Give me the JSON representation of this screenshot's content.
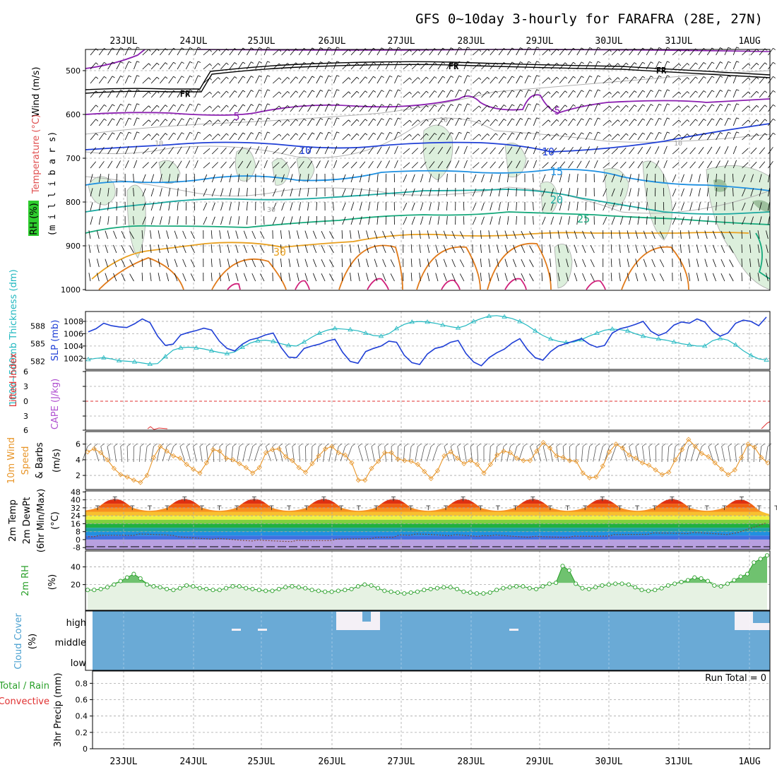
{
  "title": "GFS 0~10day 3-hourly for FARAFRA (28E, 27N)",
  "dates": [
    "23JUL",
    "24JUL",
    "25JUL",
    "26JUL",
    "27JUL",
    "28JUL",
    "29JUL",
    "30JUL",
    "31JUL",
    "1AUG"
  ],
  "colors": {
    "grid": "#a0a0a0",
    "slp": "#1f3fd6",
    "thickness": "#22b8c0",
    "wind10": "#e8962a",
    "rh2m": "#2aa02a",
    "cloud": "#6aaad6",
    "lifted": "#e03030",
    "frz": "#000000"
  },
  "panels": {
    "profile": {
      "ylabel_wind": "Wind (m/s)",
      "ylabel_temp": "Temperature (°C)",
      "ylabel_rh": "RH (%)",
      "ylabel_axis": "(m i l l i b a r s)",
      "levels": [
        "500",
        "600",
        "700",
        "800",
        "900",
        "1000"
      ],
      "contour_labels": {
        "fr1": "FR",
        "fr2": "FR",
        "fr3": "FR",
        "t5a": "5",
        "t5b": "5",
        "t10a": "10",
        "t10b": "10",
        "t15": "15",
        "t20": "20",
        "t25": "25",
        "t30": "30",
        "rh10a": "10",
        "rh10b": "10",
        "rh10c": "10",
        "rh30": "30"
      }
    },
    "slp": {
      "ylabel_thk": "1000~500mb Thickness (dm)",
      "ylabel_slp": "SLP (mb)",
      "thk_ticks": [
        "588",
        "585",
        "582"
      ],
      "slp_ticks": [
        "1008",
        "1006",
        "1004",
        "1002"
      ]
    },
    "cape": {
      "ylabel_li": "Lifted Index",
      "ylabel_cape": "CAPE (J/kg)",
      "ticks": [
        "6",
        "3",
        "0",
        "3",
        "6"
      ]
    },
    "wind10": {
      "ylabel_1": "10m Wind",
      "ylabel_2": "Speed",
      "ylabel_3": "& Barbs",
      "ylabel_unit": "(m/s)",
      "ticks": [
        "6",
        "4",
        "2"
      ]
    },
    "temp2m": {
      "ylabel_1": "2m Temp",
      "ylabel_2": "2m DewPt",
      "ylabel_3": "(6hr Min/Max)",
      "ylabel_unit": "(°C)",
      "ticks": [
        "48",
        "40",
        "32",
        "24",
        "16",
        "8",
        "0",
        "-8"
      ]
    },
    "rh2m": {
      "ylabel": "2m RH",
      "ylabel_unit": "(%)",
      "ticks": [
        "40",
        "20"
      ]
    },
    "cloud": {
      "ylabel": "Cloud Cover",
      "ylabel_unit": "(%)",
      "layers": [
        "high",
        "middle",
        "low"
      ]
    },
    "precip": {
      "ylabel_1": "Total / Rain",
      "ylabel_2": "Convective",
      "ylabel_3": "3hr Precip (mm)",
      "run_total": "Run Total = 0",
      "ticks": [
        "0.8",
        "0.6",
        "0.4",
        "0.2",
        "0"
      ]
    }
  },
  "chart_data": [
    {
      "type": "line",
      "panel": "slp",
      "series": [
        {
          "name": "SLP (mb)",
          "values": [
            1006.3,
            1006.8,
            1007.7,
            1007.3,
            1007.1,
            1007.0,
            1007.6,
            1008.4,
            1007.8,
            1005.6,
            1004.1,
            1004.3,
            1005.8,
            1006.2,
            1006.5,
            1006.9,
            1006.6,
            1004.8,
            1003.6,
            1003.2,
            1004.3,
            1005.0,
            1005.3,
            1005.8,
            1006.1,
            1003.8,
            1002.2,
            1002.1,
            1003.6,
            1004.0,
            1004.3,
            1004.8,
            1005.1,
            1003.0,
            1001.5,
            1001.2,
            1003.1,
            1003.6,
            1004.0,
            1004.8,
            1004.6,
            1002.5,
            1001.3,
            1001.0,
            1002.7,
            1003.6,
            1003.9,
            1004.6,
            1004.9,
            1002.8,
            1001.4,
            1000.8,
            1002.1,
            1002.9,
            1003.5,
            1004.5,
            1005.2,
            1003.4,
            1002.1,
            1001.7,
            1003.1,
            1004.0,
            1004.4,
            1004.8,
            1005.2,
            1004.3,
            1003.8,
            1004.1,
            1006.1,
            1006.8,
            1007.1,
            1007.5,
            1008.0,
            1006.4,
            1005.7,
            1006.2,
            1007.4,
            1007.9,
            1007.7,
            1008.4,
            1007.9,
            1006.4,
            1005.6,
            1006.1,
            1007.7,
            1008.2,
            1008.0,
            1007.3,
            1008.7
          ]
        },
        {
          "name": "1000~500mb Thickness (dm)",
          "values": [
            582.3,
            582.5,
            582.6,
            582.4,
            582.1,
            582.0,
            581.9,
            581.7,
            581.5,
            581.6,
            582.8,
            583.9,
            584.3,
            584.4,
            584.3,
            584.1,
            583.8,
            583.5,
            583.3,
            583.6,
            584.4,
            585.1,
            585.5,
            585.6,
            585.4,
            585.0,
            584.7,
            584.6,
            585.3,
            586.1,
            586.8,
            587.3,
            587.6,
            587.5,
            587.4,
            587.2,
            586.8,
            586.4,
            586.3,
            586.7,
            587.6,
            588.3,
            588.7,
            588.8,
            588.7,
            588.5,
            588.2,
            587.9,
            587.7,
            588.1,
            588.8,
            589.3,
            589.7,
            589.8,
            589.6,
            589.3,
            588.8,
            588.1,
            587.2,
            586.4,
            585.8,
            585.4,
            585.2,
            585.3,
            585.7,
            586.3,
            586.8,
            587.3,
            587.5,
            587.4,
            587.2,
            586.7,
            586.3,
            586.0,
            585.8,
            585.6,
            585.3,
            585.0,
            584.8,
            584.6,
            584.6,
            585.5,
            585.9,
            585.6,
            584.8,
            583.8,
            583.0,
            582.4,
            582.2
          ]
        }
      ]
    },
    {
      "type": "line",
      "panel": "wind10",
      "series": [
        {
          "name": "10m Wind Speed",
          "values": [
            5.0,
            5.4,
            4.9,
            4.0,
            2.9,
            2.1,
            1.8,
            1.4,
            1.1,
            2.0,
            4.3,
            5.7,
            5.1,
            4.5,
            4.2,
            3.4,
            2.8,
            2.3,
            3.6,
            5.3,
            5.1,
            4.2,
            4.0,
            3.5,
            3.0,
            2.3,
            3.0,
            4.9,
            5.3,
            5.4,
            4.4,
            3.9,
            3.0,
            2.4,
            3.5,
            4.5,
            5.4,
            5.7,
            4.9,
            4.6,
            3.6,
            1.4,
            1.4,
            2.9,
            3.8,
            4.9,
            4.9,
            4.1,
            3.9,
            3.8,
            3.4,
            2.5,
            1.6,
            2.6,
            4.5,
            5.0,
            4.2,
            3.5,
            3.9,
            3.4,
            2.3,
            3.4,
            4.6,
            5.1,
            4.9,
            4.2,
            3.9,
            3.9,
            5.1,
            6.2,
            5.5,
            4.5,
            4.3,
            3.9,
            3.8,
            2.3,
            1.7,
            1.8,
            3.2,
            5.0,
            6.0,
            5.5,
            4.6,
            4.2,
            3.6,
            3.3,
            2.7,
            2.1,
            2.4,
            4.0,
            5.3,
            6.6,
            5.7,
            4.8,
            4.4,
            3.6,
            2.8,
            2.1,
            2.7,
            4.3,
            6.0,
            5.6,
            4.3,
            3.6
          ]
        }
      ]
    },
    {
      "type": "area",
      "panel": "rh2m",
      "series": [
        {
          "name": "2m RH",
          "values": [
            14,
            14,
            15,
            17,
            20,
            24,
            28,
            32,
            27,
            20,
            18,
            17,
            15,
            14,
            16,
            19,
            18,
            16,
            15,
            14,
            14,
            16,
            18,
            18,
            16,
            15,
            14,
            13,
            13,
            15,
            17,
            18,
            17,
            16,
            14,
            13,
            12,
            12,
            13,
            14,
            15,
            18,
            20,
            19,
            16,
            13,
            12,
            11,
            10,
            11,
            12,
            14,
            15,
            16,
            17,
            17,
            15,
            12,
            11,
            10,
            10,
            11,
            14,
            16,
            17,
            18,
            18,
            16,
            15,
            18,
            21,
            22,
            41,
            36,
            21,
            16,
            15,
            17,
            19,
            20,
            21,
            21,
            20,
            17,
            14,
            13,
            14,
            16,
            19,
            21,
            23,
            25,
            28,
            27,
            24,
            19,
            18,
            21,
            25,
            29,
            32,
            45,
            49,
            53
          ]
        }
      ]
    }
  ]
}
